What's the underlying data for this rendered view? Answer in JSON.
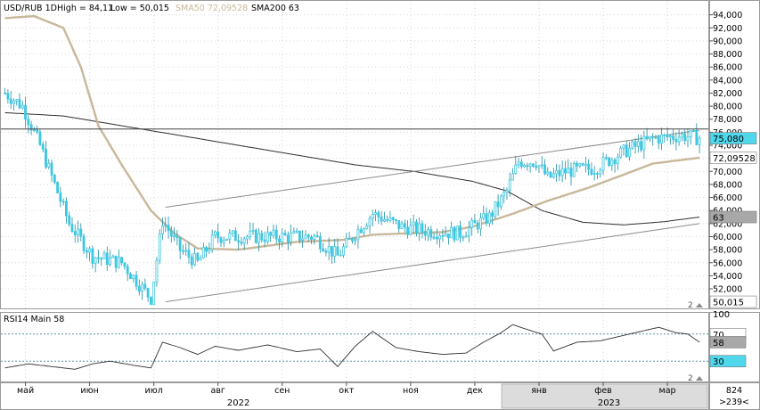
{
  "header": {
    "symbol": "USD/RUB 1D",
    "high_label": "High = 84,11",
    "low_label": "Low = 50,015",
    "sma50_label": "SMA50 72,09528",
    "sma200_label": "SMA200 63"
  },
  "rsi_header": {
    "label": "RSI14 Main 58"
  },
  "colors": {
    "background": "#ffffff",
    "candles": "#3cc8e0",
    "candle_wick": "#1b8fa6",
    "sma50": "#c8b89a",
    "sma200": "#303030",
    "channel": "#8c8c8c",
    "grid": "#d8d8d8",
    "value_box_cyan": "#4fd8ec",
    "value_box_tan": "#e6dcc6",
    "value_box_gray": "#a8a8a8",
    "rsi_line": "#303030",
    "scrollbar": "#dcdcdc"
  },
  "chart_data": [
    {
      "type": "candlestick",
      "title": "USD/RUB 1D",
      "ylim": [
        49,
        96
      ],
      "y_ticks": [
        "52,000",
        "54,000",
        "56,000",
        "58,000",
        "60,000",
        "62,000",
        "64,000",
        "66,000",
        "68,000",
        "70,000",
        "72,000",
        "74,000",
        "76,000",
        "78,000",
        "80,000",
        "82,000",
        "84,000",
        "86,000",
        "88,000",
        "90,000",
        "92,000",
        "94,000"
      ],
      "y_tick_values": [
        52,
        54,
        56,
        58,
        60,
        62,
        64,
        66,
        68,
        70,
        72,
        74,
        76,
        78,
        80,
        82,
        84,
        86,
        88,
        90,
        92,
        94
      ],
      "x_month_labels": [
        "май",
        "июн",
        "июл",
        "авг",
        "сен",
        "окт",
        "ноя",
        "дек",
        "янв",
        "фев",
        "мар"
      ],
      "x_month_index": [
        7,
        29,
        51,
        73,
        95,
        117,
        139,
        161,
        183,
        205,
        227
      ],
      "year_labels": [
        "2022",
        "2023"
      ],
      "year_label_index": [
        80,
        207
      ],
      "high": 84.11,
      "low": 50.015,
      "last_price_label": "75,080",
      "last_price": 75.08,
      "sma50_label": "72,09528",
      "sma50_last": 72.09528,
      "sma200_label": "63",
      "sma200_last": 63,
      "low_label": "50,015",
      "horizontal_line": 76.5,
      "key_closes": [
        {
          "i": 0,
          "v": 82
        },
        {
          "i": 6,
          "v": 80
        },
        {
          "i": 12,
          "v": 74
        },
        {
          "i": 22,
          "v": 62
        },
        {
          "i": 30,
          "v": 57
        },
        {
          "i": 40,
          "v": 56
        },
        {
          "i": 50,
          "v": 50.5
        },
        {
          "i": 54,
          "v": 62.5
        },
        {
          "i": 60,
          "v": 58
        },
        {
          "i": 66,
          "v": 56
        },
        {
          "i": 72,
          "v": 60
        },
        {
          "i": 82,
          "v": 60
        },
        {
          "i": 94,
          "v": 60
        },
        {
          "i": 106,
          "v": 60
        },
        {
          "i": 114,
          "v": 57
        },
        {
          "i": 120,
          "v": 60.5
        },
        {
          "i": 126,
          "v": 63.5
        },
        {
          "i": 136,
          "v": 61.5
        },
        {
          "i": 146,
          "v": 60.8
        },
        {
          "i": 156,
          "v": 60.5
        },
        {
          "i": 166,
          "v": 63
        },
        {
          "i": 172,
          "v": 67
        },
        {
          "i": 176,
          "v": 71.5
        },
        {
          "i": 182,
          "v": 71.5
        },
        {
          "i": 186,
          "v": 69
        },
        {
          "i": 192,
          "v": 70
        },
        {
          "i": 202,
          "v": 70.5
        },
        {
          "i": 212,
          "v": 73
        },
        {
          "i": 222,
          "v": 75
        },
        {
          "i": 232,
          "v": 75.5
        },
        {
          "i": 238,
          "v": 75.08
        }
      ],
      "sma50": [
        {
          "i": 0,
          "v": 93.5
        },
        {
          "i": 10,
          "v": 93.8
        },
        {
          "i": 20,
          "v": 92
        },
        {
          "i": 26,
          "v": 86
        },
        {
          "i": 32,
          "v": 77
        },
        {
          "i": 40,
          "v": 71
        },
        {
          "i": 50,
          "v": 64
        },
        {
          "i": 58,
          "v": 60.5
        },
        {
          "i": 66,
          "v": 58.2
        },
        {
          "i": 80,
          "v": 58
        },
        {
          "i": 100,
          "v": 59.2
        },
        {
          "i": 116,
          "v": 59.5
        },
        {
          "i": 126,
          "v": 60.3
        },
        {
          "i": 150,
          "v": 60.7
        },
        {
          "i": 160,
          "v": 61.5
        },
        {
          "i": 174,
          "v": 63.5
        },
        {
          "i": 186,
          "v": 65.5
        },
        {
          "i": 200,
          "v": 67.5
        },
        {
          "i": 212,
          "v": 69.5
        },
        {
          "i": 222,
          "v": 71.2
        },
        {
          "i": 238,
          "v": 72.1
        }
      ],
      "sma200": [
        {
          "i": 0,
          "v": 79
        },
        {
          "i": 20,
          "v": 78.5
        },
        {
          "i": 40,
          "v": 77
        },
        {
          "i": 60,
          "v": 75.5
        },
        {
          "i": 80,
          "v": 74
        },
        {
          "i": 100,
          "v": 72.5
        },
        {
          "i": 120,
          "v": 71
        },
        {
          "i": 140,
          "v": 70
        },
        {
          "i": 160,
          "v": 68.5
        },
        {
          "i": 172,
          "v": 67
        },
        {
          "i": 184,
          "v": 64
        },
        {
          "i": 198,
          "v": 62.2
        },
        {
          "i": 212,
          "v": 61.8
        },
        {
          "i": 226,
          "v": 62.3
        },
        {
          "i": 238,
          "v": 63
        }
      ],
      "channel_upper": [
        {
          "i": 55,
          "v": 64.5
        },
        {
          "i": 238,
          "v": 76.3
        }
      ],
      "channel_lower": [
        {
          "i": 55,
          "v": 50
        },
        {
          "i": 238,
          "v": 62
        }
      ]
    },
    {
      "type": "line",
      "title": "RSI14 Main 58",
      "ylim": [
        0,
        100
      ],
      "y_ticks": [
        "100",
        "70",
        "58",
        "30"
      ],
      "y_tick_values": [
        100,
        70,
        58,
        30
      ],
      "levels": [
        70,
        30
      ],
      "last_value": 58,
      "points": [
        {
          "i": 0,
          "v": 20
        },
        {
          "i": 8,
          "v": 26
        },
        {
          "i": 16,
          "v": 22
        },
        {
          "i": 24,
          "v": 18
        },
        {
          "i": 30,
          "v": 26
        },
        {
          "i": 36,
          "v": 30
        },
        {
          "i": 44,
          "v": 24
        },
        {
          "i": 50,
          "v": 20
        },
        {
          "i": 54,
          "v": 58
        },
        {
          "i": 60,
          "v": 50
        },
        {
          "i": 66,
          "v": 40
        },
        {
          "i": 72,
          "v": 52
        },
        {
          "i": 80,
          "v": 46
        },
        {
          "i": 90,
          "v": 54
        },
        {
          "i": 100,
          "v": 44
        },
        {
          "i": 108,
          "v": 48
        },
        {
          "i": 114,
          "v": 22
        },
        {
          "i": 120,
          "v": 52
        },
        {
          "i": 126,
          "v": 74
        },
        {
          "i": 134,
          "v": 50
        },
        {
          "i": 142,
          "v": 44
        },
        {
          "i": 150,
          "v": 40
        },
        {
          "i": 158,
          "v": 42
        },
        {
          "i": 164,
          "v": 58
        },
        {
          "i": 170,
          "v": 72
        },
        {
          "i": 174,
          "v": 84
        },
        {
          "i": 178,
          "v": 78
        },
        {
          "i": 184,
          "v": 70
        },
        {
          "i": 188,
          "v": 45
        },
        {
          "i": 196,
          "v": 58
        },
        {
          "i": 204,
          "v": 60
        },
        {
          "i": 212,
          "v": 68
        },
        {
          "i": 218,
          "v": 74
        },
        {
          "i": 224,
          "v": 80
        },
        {
          "i": 230,
          "v": 72
        },
        {
          "i": 234,
          "v": 70
        },
        {
          "i": 238,
          "v": 58
        }
      ]
    }
  ],
  "footer": {
    "bar_count": "824",
    "offset": ">239<"
  },
  "pane_tags": {
    "main": "2",
    "rsi": "2"
  }
}
